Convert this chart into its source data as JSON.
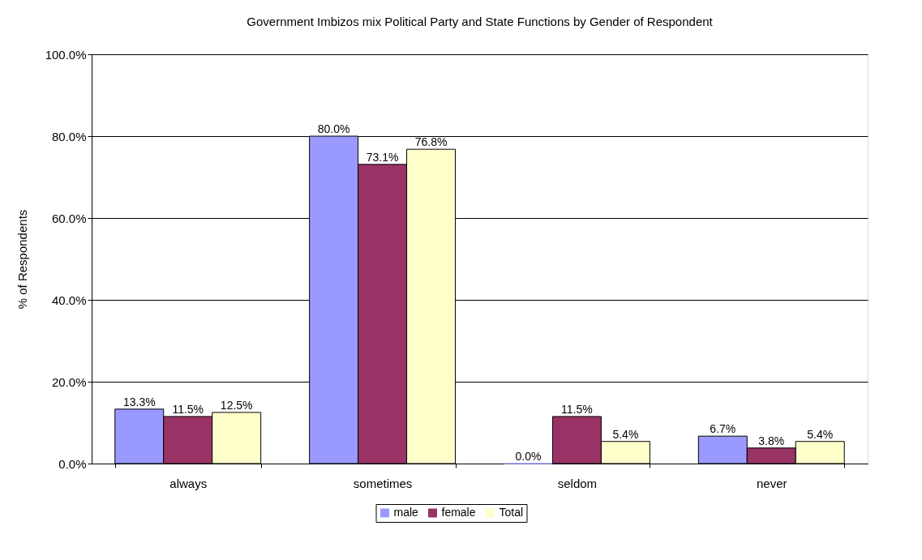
{
  "chart_data": {
    "type": "bar",
    "title": "Government Imbizos mix Political Party and State Functions by Gender of Respondent",
    "ylabel": "% of Respondents",
    "categories": [
      "always",
      "sometimes",
      "seldom",
      "never"
    ],
    "series": [
      {
        "name": "male",
        "color": "#9999ff",
        "values": [
          13.3,
          80.0,
          0.0,
          6.7
        ],
        "value_labels": [
          "13.3%",
          "80.0%",
          "0.0%",
          "6.7%"
        ]
      },
      {
        "name": "female",
        "color": "#993366",
        "values": [
          11.5,
          73.1,
          11.5,
          3.8
        ],
        "value_labels": [
          "11.5%",
          "73.1%",
          "11.5%",
          "3.8%"
        ]
      },
      {
        "name": "Total",
        "color": "#ffffcc",
        "values": [
          12.5,
          76.8,
          5.4,
          5.4
        ],
        "value_labels": [
          "12.5%",
          "76.8%",
          "5.4%",
          "5.4%"
        ]
      }
    ],
    "ylim": [
      0,
      100
    ],
    "yticks": [
      {
        "value": 0,
        "label": "0.0%"
      },
      {
        "value": 20,
        "label": "20.0%"
      },
      {
        "value": 40,
        "label": "40.0%"
      },
      {
        "value": 60,
        "label": "60.0%"
      },
      {
        "value": 80,
        "label": "80.0%"
      },
      {
        "value": 100,
        "label": "100.0%"
      }
    ],
    "grid": "y",
    "legend": "bottom"
  }
}
